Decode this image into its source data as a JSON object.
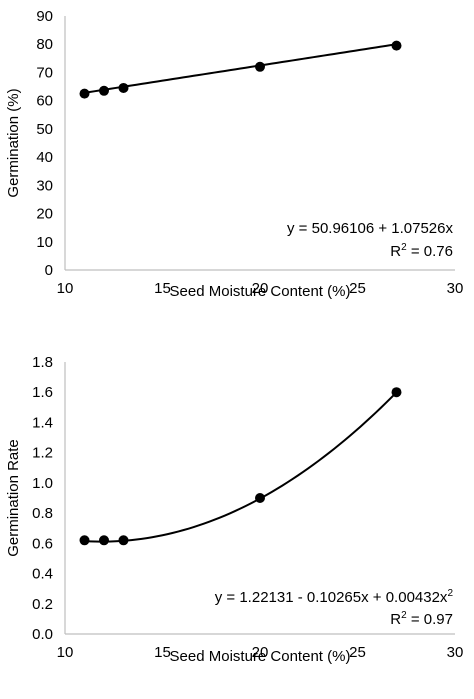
{
  "chart_data": [
    {
      "type": "scatter",
      "xlabel": "Seed Moisture Content (%)",
      "ylabel": "Germination (%)",
      "xlim": [
        10,
        30
      ],
      "ylim": [
        0,
        90
      ],
      "x_ticks": [
        "10",
        "15",
        "20",
        "25",
        "30"
      ],
      "y_ticks": [
        "0",
        "10",
        "20",
        "30",
        "40",
        "50",
        "60",
        "70",
        "80",
        "90"
      ],
      "x": [
        11,
        12,
        13,
        20,
        27
      ],
      "y": [
        62.5,
        63.5,
        64.5,
        72,
        79.5
      ],
      "trendline": {
        "model": "linear",
        "coef": [
          50.96106,
          1.07526
        ]
      },
      "equation": "y = 50.96106 + 1.07526x",
      "r2_prefix": "R",
      "r2_sup": "2",
      "r2_value": " = 0.76"
    },
    {
      "type": "scatter",
      "xlabel": "Seed Moisture Content (%)",
      "ylabel": "Germination Rate",
      "xlim": [
        10,
        30
      ],
      "ylim": [
        0,
        1.8
      ],
      "x_ticks": [
        "10",
        "15",
        "20",
        "25",
        "30"
      ],
      "y_ticks": [
        "0.0",
        "0.2",
        "0.4",
        "0.6",
        "0.8",
        "1.0",
        "1.2",
        "1.4",
        "1.6",
        "1.8"
      ],
      "x": [
        11,
        12,
        13,
        20,
        27
      ],
      "y": [
        0.62,
        0.62,
        0.62,
        0.9,
        1.6
      ],
      "trendline": {
        "model": "quadratic",
        "coef": [
          1.22131,
          -0.10265,
          0.00432
        ]
      },
      "equation": "y = 1.22131 - 0.10265x + 0.00432x",
      "equation_sup": "2",
      "r2_prefix": "R",
      "r2_sup": "2",
      "r2_value": " = 0.97"
    }
  ]
}
